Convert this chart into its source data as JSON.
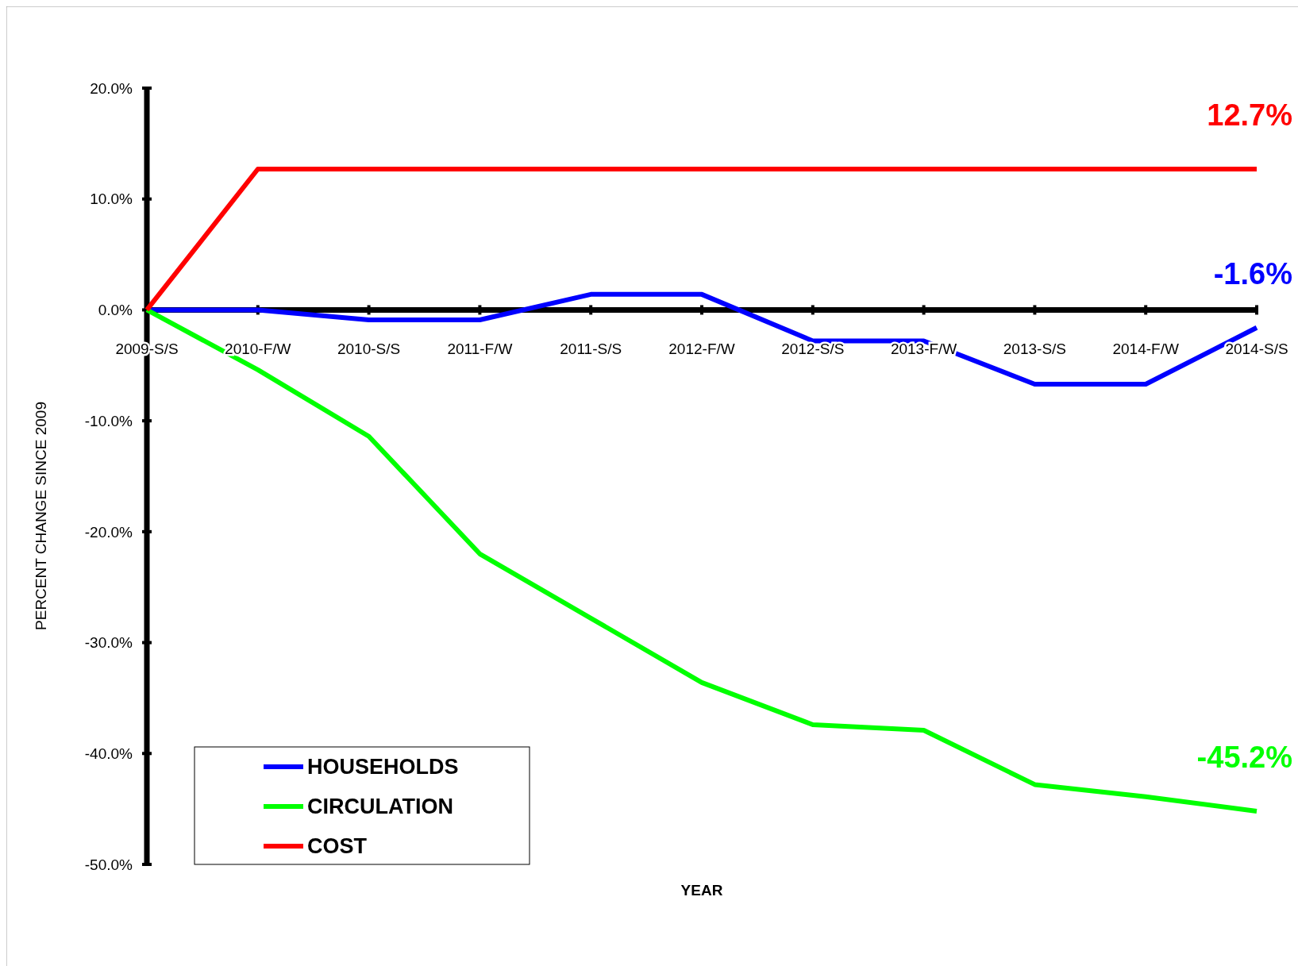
{
  "chart_data": {
    "type": "line",
    "xlabel": "YEAR",
    "ylabel": "PERCENT CHANGE SINCE 2009",
    "categories": [
      "2009-S/S",
      "2010-F/W",
      "2010-S/S",
      "2011-F/W",
      "2011-S/S",
      "2012-F/W",
      "2012-S/S",
      "2013-F/W",
      "2013-S/S",
      "2014-F/W",
      "2014-S/S"
    ],
    "series": [
      {
        "name": "HOUSEHOLDS",
        "color": "#0000ff",
        "values": [
          0,
          0,
          -0.9,
          -0.9,
          1.4,
          1.4,
          -2.8,
          -2.8,
          -6.7,
          -6.7,
          -1.6
        ],
        "value_labels": [
          null,
          null,
          null,
          null,
          null,
          null,
          null,
          null,
          null,
          null,
          "-1.6%"
        ]
      },
      {
        "name": "CIRCULATION",
        "color": "#00ff00",
        "values": [
          0,
          -5.4,
          -11.4,
          -22,
          -27.8,
          -33.6,
          -37.4,
          -37.9,
          -42.8,
          -43.9,
          -45.2
        ],
        "value_labels": [
          null,
          null,
          null,
          null,
          null,
          null,
          null,
          null,
          null,
          null,
          "-45.2%"
        ]
      },
      {
        "name": "COST",
        "color": "#ff0000",
        "values": [
          0,
          12.7,
          12.7,
          12.7,
          12.7,
          12.7,
          12.7,
          12.7,
          12.7,
          12.7,
          12.7
        ],
        "value_labels": [
          null,
          null,
          null,
          null,
          null,
          null,
          null,
          null,
          null,
          null,
          "12.7%"
        ]
      }
    ],
    "ylim": [
      -50,
      20
    ],
    "yticks": [
      {
        "value": 20,
        "label": "20.0%"
      },
      {
        "value": 10,
        "label": "10.0%"
      },
      {
        "value": 0,
        "label": "0.0%"
      },
      {
        "value": -10,
        "label": "-10.0%"
      },
      {
        "value": -20,
        "label": "-20.0%"
      },
      {
        "value": -30,
        "label": "-30.0%"
      },
      {
        "value": -40,
        "label": "-40.0%"
      },
      {
        "value": -50,
        "label": "-50.0%"
      }
    ],
    "grid": false,
    "legend": "bottom left",
    "marker": "none",
    "line_style": "solid"
  }
}
